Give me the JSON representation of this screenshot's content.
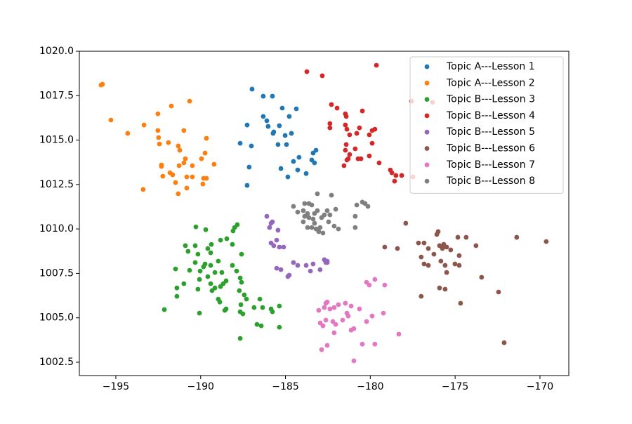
{
  "chart_data": {
    "type": "scatter",
    "xlim": [
      -197.15,
      -168.3
    ],
    "ylim": [
      1001.75,
      1020.0
    ],
    "xticks": [
      {
        "value": -195,
        "label": "−195"
      },
      {
        "value": -190,
        "label": "−190"
      },
      {
        "value": -185,
        "label": "−185"
      },
      {
        "value": -180,
        "label": "−180"
      },
      {
        "value": -175,
        "label": "−175"
      },
      {
        "value": -170,
        "label": "−170"
      }
    ],
    "yticks": [
      1002.5,
      {
        "value": 1005,
        "label": "1005.0"
      },
      1007.5,
      {
        "value": 1010,
        "label": "1010.0"
      },
      1012.5,
      {
        "value": 1015,
        "label": "1015.0"
      },
      1017.5,
      {
        "value": 1020,
        "label": "1020.0"
      }
    ],
    "grid": false,
    "legend": "upper right",
    "series": [
      {
        "name": "Topic A---Lesson 1",
        "color": "#1f77b4",
        "x": [
          -186.97,
          -186.31,
          -185.77,
          -185.19,
          -184.36,
          -184.78,
          -186.31,
          -186.1,
          -187.26,
          -186.02,
          -185.69,
          -185.73,
          -185.36,
          -185.02,
          -184.65,
          -187.67,
          -187.01,
          -185.44,
          -184.94,
          -184.2,
          -183.37,
          -183.2,
          -183.29,
          -183.45,
          -184.53,
          -185.27,
          -184.28,
          -184.86,
          -183.78,
          -187.14,
          -187.26
        ],
        "values": [
          1017.87,
          1017.47,
          1017.47,
          1016.8,
          1016.76,
          1016.33,
          1016.33,
          1016.09,
          1015.85,
          1015.77,
          1015.46,
          1015.38,
          1015.81,
          1015.26,
          1015.38,
          1014.82,
          1014.67,
          1014.75,
          1014.75,
          1014.03,
          1014.27,
          1014.43,
          1013.72,
          1013.88,
          1013.8,
          1013.4,
          1013.32,
          1012.93,
          1013.12,
          1013.48,
          1012.45
        ]
      },
      {
        "name": "Topic A---Lesson 2",
        "color": "#ff7f0e",
        "x": [
          -195.79,
          -195.87,
          -195.29,
          -194.3,
          -193.34,
          -192.52,
          -191.73,
          -190.65,
          -192.52,
          -192.48,
          -191.9,
          -190.99,
          -191.32,
          -191.23,
          -192.43,
          -192.31,
          -192.31,
          -191.81,
          -191.65,
          -191.27,
          -190.99,
          -190.9,
          -190.49,
          -190.49,
          -191.48,
          -191.32,
          -190.82,
          -190.82,
          -189.83,
          -189.66,
          -189.95,
          -189.74,
          -189.66,
          -189.21,
          -189.87,
          -192.23,
          -193.39
        ],
        "values": [
          1018.14,
          1018.1,
          1016.13,
          1015.38,
          1015.85,
          1016.48,
          1016.92,
          1017.19,
          1015.54,
          1015.14,
          1014.86,
          1015.54,
          1014.67,
          1014.43,
          1014.78,
          1013.6,
          1013.52,
          1013.16,
          1013.05,
          1013.56,
          1013.72,
          1013.95,
          1013.56,
          1012.93,
          1012.61,
          1011.98,
          1012.3,
          1012.93,
          1012.85,
          1012.85,
          1013.95,
          1014.27,
          1015.1,
          1013.64,
          1012.53,
          1012.97,
          1012.22
        ]
      },
      {
        "name": "Topic B---Lesson 3",
        "color": "#2ca02c",
        "x": [
          -190.28,
          -189.7,
          -190.9,
          -190.32,
          -189.37,
          -189.41,
          -188.13,
          -187.84,
          -188.0,
          -188.09,
          -188.46,
          -188.83,
          -189.58,
          -190.74,
          -190.16,
          -190.32,
          -189.74,
          -189.83,
          -190.03,
          -189.41,
          -188.96,
          -189.16,
          -188.75,
          -187.59,
          -188.13,
          -187.88,
          -191.48,
          -190.65,
          -190.99,
          -190.07,
          -189.58,
          -189.33,
          -188.83,
          -188.67,
          -188.5,
          -187.67,
          -187.59,
          -191.4,
          -191.4,
          -190.16,
          -189.41,
          -189.16,
          -188.96,
          -188.87,
          -188.5,
          -188.58,
          -187.72,
          -187.43,
          -187.63,
          -187.3,
          -187.67,
          -186.51,
          -186.35,
          -186.85,
          -185.85,
          -185.77,
          -185.36,
          -192.14,
          -190.07,
          -187.51,
          -186.68,
          -186.43,
          -185.36,
          -187.67
        ],
        "values": [
          1010.12,
          1009.96,
          1009.06,
          1009.06,
          1009.13,
          1008.66,
          1009.13,
          1010.24,
          1010.08,
          1009.89,
          1009.45,
          1009.37,
          1008.9,
          1008.74,
          1008.58,
          1008.11,
          1008.03,
          1007.87,
          1007.63,
          1007.95,
          1008.19,
          1007.55,
          1007.55,
          1008.58,
          1007.95,
          1007.63,
          1007.75,
          1007.67,
          1006.92,
          1007.16,
          1007.32,
          1006.53,
          1006.76,
          1006.92,
          1007.08,
          1007.24,
          1007.0,
          1006.68,
          1006.21,
          1006.61,
          1006.92,
          1006.68,
          1006.05,
          1005.89,
          1005.5,
          1005.42,
          1006.53,
          1006.29,
          1005.74,
          1006.05,
          1005.34,
          1006.05,
          1005.58,
          1005.58,
          1005.5,
          1005.34,
          1005.66,
          1005.46,
          1005.26,
          1005.22,
          1004.63,
          1004.55,
          1004.47,
          1003.84
        ]
      },
      {
        "name": "Topic B---Lesson 4",
        "color": "#d62728",
        "x": [
          -183.74,
          -182.83,
          -179.64,
          -182.29,
          -181.96,
          -181.47,
          -181.42,
          -180.47,
          -182.38,
          -182.38,
          -181.47,
          -181.38,
          -180.64,
          -180.06,
          -179.89,
          -179.73,
          -181.22,
          -180.8,
          -181.42,
          -181.47,
          -180.89,
          -181.22,
          -181.3,
          -180.72,
          -180.55,
          -181.38,
          -181.55,
          -179.89,
          -180.06,
          -179.48,
          -178.73,
          -178.82,
          -178.49,
          -178.57,
          -178.15,
          -177.49,
          -177.57,
          -176.33
        ],
        "values": [
          1018.85,
          1018.62,
          1019.21,
          1017.0,
          1016.8,
          1016.48,
          1016.33,
          1016.64,
          1015.93,
          1015.69,
          1015.85,
          1015.61,
          1015.69,
          1015.3,
          1015.54,
          1015.61,
          1015.3,
          1015.38,
          1014.75,
          1014.43,
          1014.51,
          1014.19,
          1013.95,
          1013.95,
          1013.95,
          1013.88,
          1013.56,
          1014.82,
          1014.11,
          1013.72,
          1013.16,
          1013.32,
          1013.01,
          1012.69,
          1013.01,
          1012.93,
          1017.19,
          1017.12
        ]
      },
      {
        "name": "Topic B---Lesson 5",
        "color": "#9467bd",
        "x": [
          -186.1,
          -185.85,
          -185.77,
          -185.94,
          -185.44,
          -185.52,
          -185.85,
          -185.69,
          -185.36,
          -185.11,
          -185.52,
          -185.27,
          -184.86,
          -184.78,
          -184.53,
          -184.28,
          -183.78,
          -183.37,
          -183.53,
          -182.96,
          -182.71,
          -182.62,
          -182.54,
          -182.54
        ],
        "values": [
          1010.71,
          1010.32,
          1010.4,
          1010.08,
          1009.93,
          1009.37,
          1009.21,
          1009.06,
          1008.98,
          1008.98,
          1007.79,
          1007.71,
          1007.32,
          1007.4,
          1008.11,
          1007.95,
          1007.95,
          1008.03,
          1007.63,
          1007.71,
          1008.27,
          1008.11,
          1008.19,
          1008.11
        ]
      },
      {
        "name": "Topic B---Lesson 6",
        "color": "#8c564b",
        "x": [
          -177.91,
          -177.16,
          -176.83,
          -176.0,
          -176.08,
          -176.58,
          -175.75,
          -175.92,
          -175.67,
          -175.5,
          -175.26,
          -174.76,
          -174.84,
          -174.35,
          -173.77,
          -179.15,
          -178.4,
          -177.0,
          -176.25,
          -175.84,
          -176.83,
          -176.58,
          -175.59,
          -175.5,
          -175.01,
          -174.76,
          -175.92,
          -175.59,
          -177.0,
          -174.68,
          -173.44,
          -172.44,
          -171.37,
          -169.63,
          -172.11
        ],
        "values": [
          1010.32,
          1009.21,
          1009.21,
          1009.85,
          1009.69,
          1008.9,
          1008.9,
          1009.06,
          1009.13,
          1008.98,
          1008.82,
          1008.5,
          1009.53,
          1009.53,
          1009.06,
          1008.98,
          1008.9,
          1008.42,
          1008.58,
          1008.19,
          1008.03,
          1007.95,
          1007.95,
          1007.55,
          1008.03,
          1007.95,
          1006.68,
          1006.61,
          1006.21,
          1005.82,
          1007.28,
          1006.45,
          1009.53,
          1009.29,
          1003.6
        ]
      },
      {
        "name": "Topic B---Lesson 7",
        "color": "#e377c2",
        "x": [
          -183.04,
          -182.71,
          -182.62,
          -182.54,
          -182.38,
          -182.13,
          -181.88,
          -181.47,
          -181.13,
          -180.64,
          -182.95,
          -182.79,
          -182.62,
          -182.21,
          -182.04,
          -181.63,
          -181.3,
          -181.13,
          -180.97,
          -182.13,
          -181.38,
          -180.22,
          -179.89,
          -179.23,
          -180.22,
          -180.06,
          -179.73,
          -179.15,
          -178.32,
          -182.87,
          -182.54,
          -180.47,
          -179.73,
          -180.97
        ],
        "values": [
          1005.42,
          1005.58,
          1005.82,
          1005.89,
          1005.5,
          1005.58,
          1005.74,
          1005.82,
          1005.66,
          1005.5,
          1004.71,
          1004.55,
          1004.87,
          1004.79,
          1004.63,
          1004.87,
          1005.1,
          1004.31,
          1004.39,
          1004.16,
          1005.26,
          1004.79,
          1005.1,
          1005.26,
          1007.0,
          1006.84,
          1007.16,
          1006.84,
          1004.08,
          1003.21,
          1003.45,
          1003.52,
          1003.52,
          1002.58
        ]
      },
      {
        "name": "Topic B---Lesson 8",
        "color": "#7f7f7f",
        "x": [
          -184.53,
          -183.87,
          -183.62,
          -183.45,
          -183.12,
          -182.29,
          -184.28,
          -183.95,
          -183.7,
          -183.29,
          -183.12,
          -182.71,
          -182.54,
          -182.04,
          -183.87,
          -183.62,
          -183.37,
          -182.87,
          -182.46,
          -182.38,
          -182.13,
          -181.88,
          -183.7,
          -183.45,
          -183.2,
          -182.96,
          -182.79,
          -183.04,
          -183.29,
          -180.89,
          -180.89,
          -180.8,
          -180.47,
          -180.31,
          -180.14,
          -183.95
        ],
        "values": [
          1011.27,
          1011.43,
          1011.43,
          1011.35,
          1011.98,
          1011.9,
          1010.95,
          1011.03,
          1010.87,
          1010.87,
          1011.03,
          1010.79,
          1011.03,
          1011.11,
          1010.71,
          1010.64,
          1010.56,
          1010.64,
          1010.4,
          1010.79,
          1010.16,
          1010.0,
          1010.08,
          1010.08,
          1010.0,
          1010.08,
          1009.77,
          1009.85,
          1010.32,
          1010.71,
          1010.08,
          1011.35,
          1011.51,
          1011.43,
          1011.27,
          1010.4
        ]
      }
    ]
  }
}
